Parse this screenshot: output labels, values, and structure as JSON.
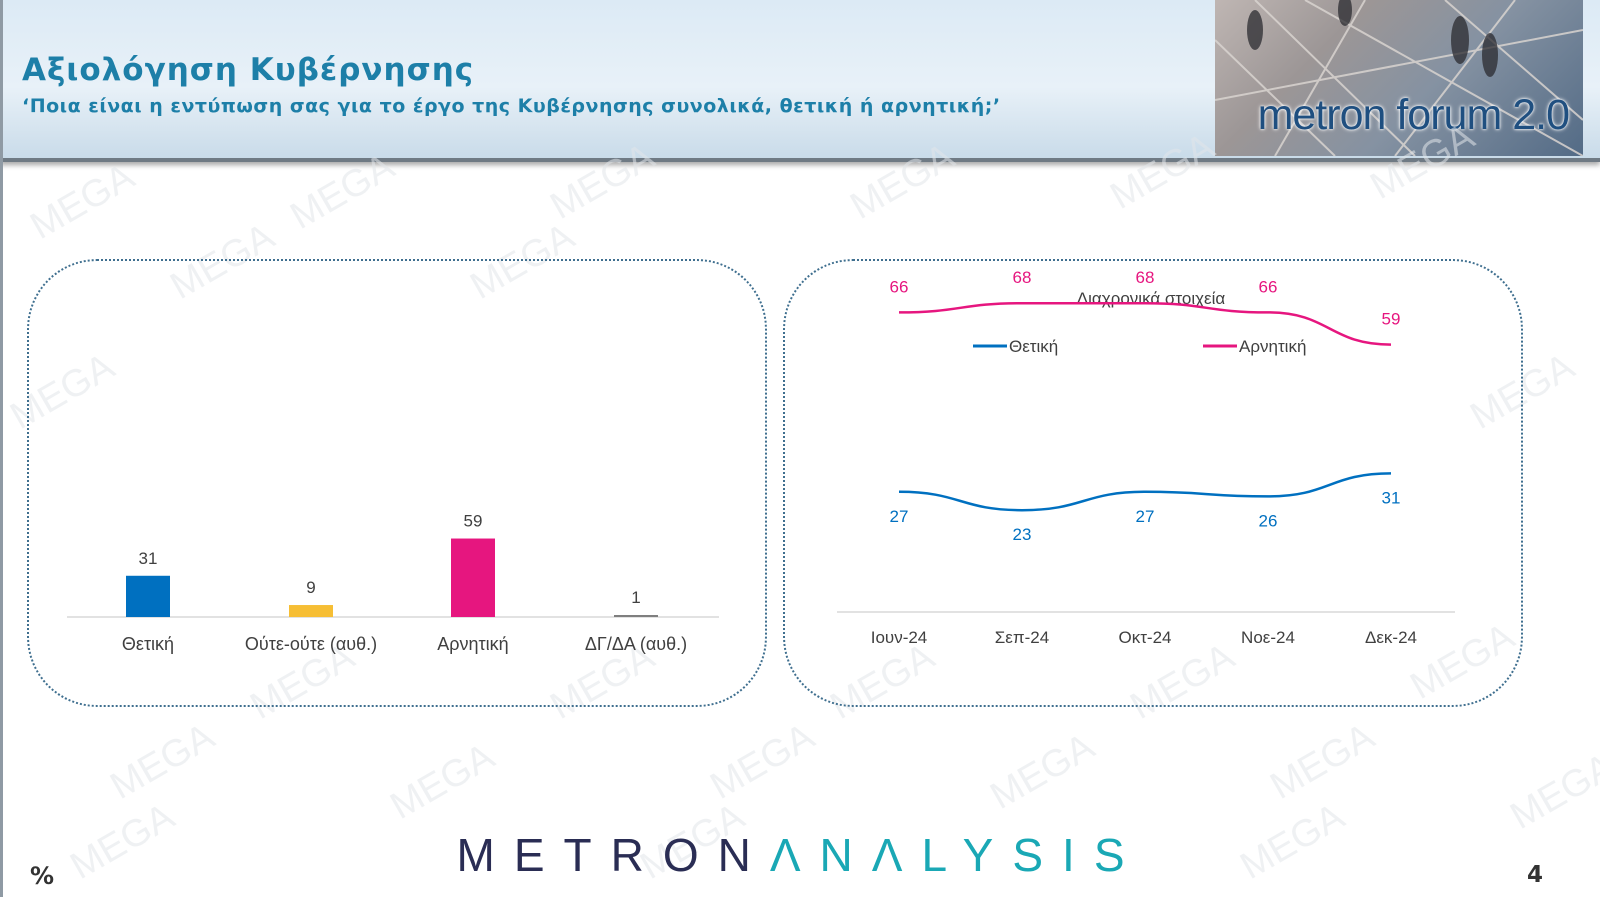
{
  "header": {
    "title": "Αξιολόγηση Κυβέρνησης",
    "subtitle": "‘Ποια είναι η εντύπωση σας για το έργο της Κυβέρνησης συνολικά, θετική ή αρνητική;’"
  },
  "photo": {
    "text": "metron forum 2.0"
  },
  "watermark": "MEGA",
  "footer": {
    "logo_a": "METRON",
    "logo_b": "ΛNΛLYSIS",
    "percent": "%",
    "page_number": "4"
  },
  "colors": {
    "positive": "#0070c0",
    "neutral": "#f6be34",
    "negative": "#e6167f",
    "dkna": "#7f7f7f",
    "title": "#1d7fa8"
  },
  "chart_data": [
    {
      "type": "bar",
      "categories": [
        "Θετική",
        "Ούτε-ούτε (αυθ.)",
        "Αρνητική",
        "ΔΓ/ΔΑ (αυθ.)"
      ],
      "values": [
        31,
        9,
        59,
        1
      ],
      "colors": [
        "#0070c0",
        "#f6be34",
        "#e6167f",
        "#7f7f7f"
      ],
      "ylim": [
        0,
        100
      ]
    },
    {
      "type": "line",
      "title": "Διαχρονικά στοιχεία",
      "categories": [
        "Ιουν-24",
        "Σεπ-24",
        "Οκτ-24",
        "Νοε-24",
        "Δεκ-24"
      ],
      "series": [
        {
          "name": "Θετική",
          "values": [
            27,
            23,
            27,
            26,
            31
          ],
          "color": "#0070c0"
        },
        {
          "name": "Αρνητική",
          "values": [
            66,
            68,
            68,
            66,
            59
          ],
          "color": "#e6167f"
        }
      ],
      "legend": "top",
      "ylim": [
        0,
        100
      ]
    }
  ]
}
